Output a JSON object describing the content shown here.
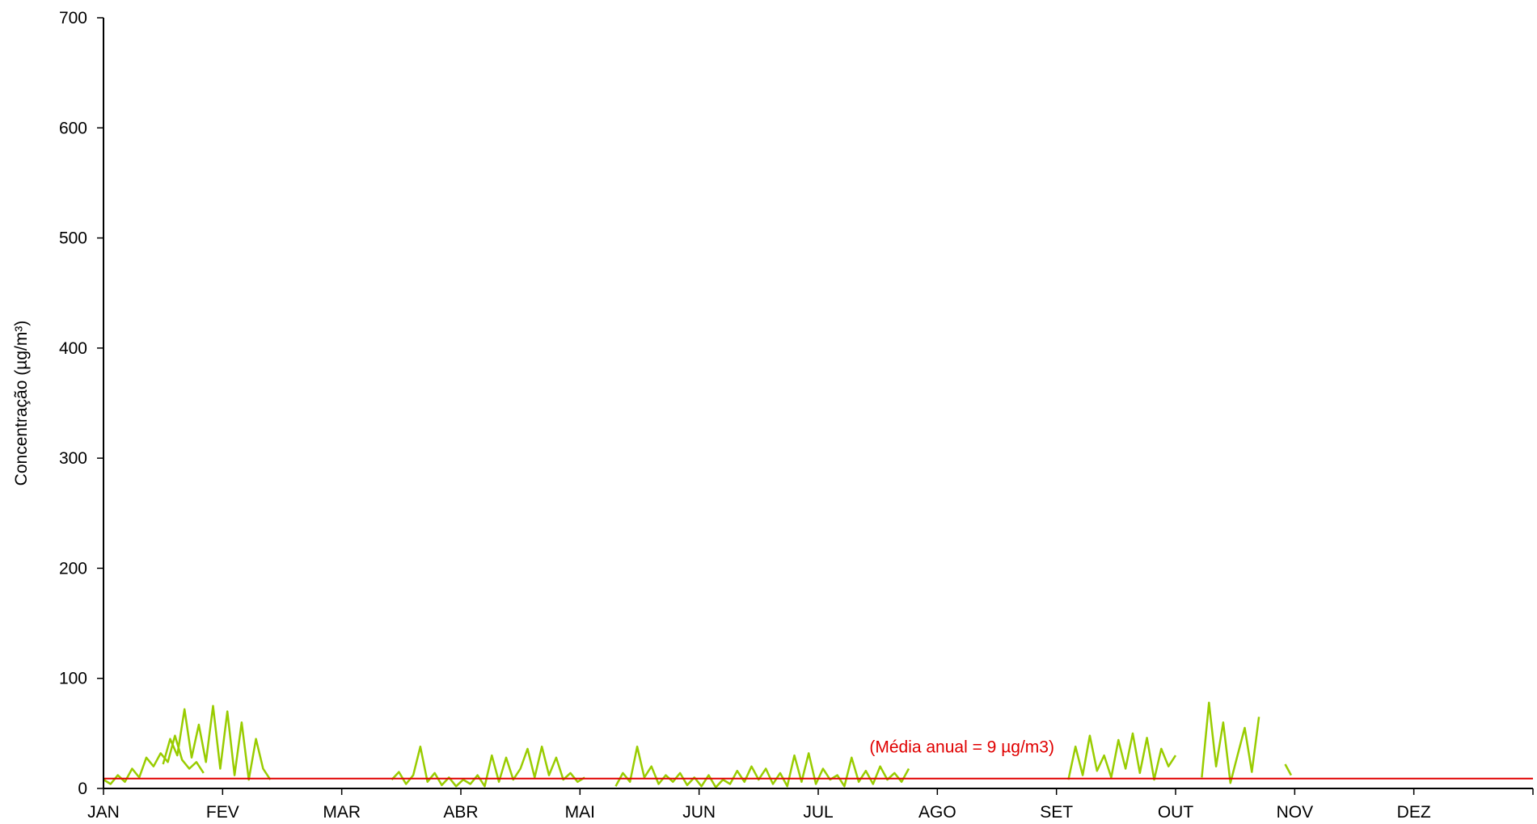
{
  "chart_data": {
    "type": "line",
    "title": "",
    "xlabel": "",
    "ylabel": "Concentração (µg/m³)",
    "ylim": [
      0,
      700
    ],
    "yticks": [
      0,
      100,
      200,
      300,
      400,
      500,
      600,
      700
    ],
    "grid": false,
    "legend": "none",
    "x_axis": {
      "categories": [
        "JAN",
        "FEV",
        "MAR",
        "ABR",
        "MAI",
        "JUN",
        "JUL",
        "AGO",
        "SET",
        "OUT",
        "NOV",
        "DEZ"
      ]
    },
    "colors": {
      "series": "#99cc00",
      "reference": "#e00000",
      "axis": "#000000"
    },
    "reference_line": {
      "value": 9,
      "label": "(Média anual = 9 µg/m3)"
    },
    "series": [
      {
        "name": "",
        "x_unit": "month (0 = JAN, 12 = end of DEZ)",
        "segments": [
          {
            "x": [
              0.0,
              0.06,
              0.12,
              0.18,
              0.24,
              0.3,
              0.36,
              0.42,
              0.48,
              0.54,
              0.6,
              0.66,
              0.72,
              0.78,
              0.84
            ],
            "y": [
              8,
              4,
              12,
              6,
              18,
              10,
              28,
              20,
              32,
              24,
              48,
              26,
              18,
              24,
              14
            ]
          },
          {
            "x": [
              0.5,
              0.56,
              0.62,
              0.68,
              0.74,
              0.8,
              0.86,
              0.92,
              0.98,
              1.04,
              1.1,
              1.16,
              1.22,
              1.28,
              1.34,
              1.4
            ],
            "y": [
              22,
              45,
              30,
              72,
              28,
              58,
              24,
              75,
              18,
              70,
              12,
              60,
              8,
              45,
              18,
              8
            ]
          },
          {
            "x": [
              2.42,
              2.48,
              2.54,
              2.6,
              2.66,
              2.72,
              2.78,
              2.84,
              2.9,
              2.96,
              3.02,
              3.08,
              3.14,
              3.2,
              3.26,
              3.32,
              3.38,
              3.44,
              3.5,
              3.56,
              3.62,
              3.68,
              3.74,
              3.8,
              3.86,
              3.92,
              3.98,
              4.04
            ],
            "y": [
              8,
              15,
              4,
              12,
              38,
              6,
              14,
              3,
              10,
              2,
              8,
              4,
              12,
              2,
              30,
              6,
              28,
              8,
              18,
              36,
              10,
              38,
              12,
              28,
              8,
              14,
              6,
              10
            ]
          },
          {
            "x": [
              4.3,
              4.36,
              4.42,
              4.48,
              4.54,
              4.6,
              4.66,
              4.72,
              4.78,
              4.84,
              4.9,
              4.96,
              5.02,
              5.08,
              5.14,
              5.2,
              5.26,
              5.32,
              5.38,
              5.44,
              5.5,
              5.56,
              5.62,
              5.68,
              5.74,
              5.8,
              5.86,
              5.92,
              5.98,
              6.04,
              6.1,
              6.16,
              6.22,
              6.28,
              6.34,
              6.4,
              6.46,
              6.52,
              6.58,
              6.64,
              6.7,
              6.76
            ],
            "y": [
              2,
              14,
              6,
              38,
              10,
              20,
              4,
              12,
              6,
              14,
              3,
              10,
              2,
              12,
              1,
              8,
              4,
              16,
              6,
              20,
              8,
              18,
              4,
              14,
              2,
              30,
              6,
              32,
              4,
              18,
              8,
              12,
              2,
              28,
              6,
              16,
              4,
              20,
              8,
              14,
              6,
              18
            ]
          },
          {
            "x": [
              8.1,
              8.16,
              8.22,
              8.28,
              8.34,
              8.4,
              8.46,
              8.52,
              8.58,
              8.64,
              8.7,
              8.76,
              8.82,
              8.88,
              8.94,
              9.0
            ],
            "y": [
              8,
              38,
              12,
              48,
              16,
              30,
              10,
              44,
              18,
              50,
              14,
              46,
              8,
              36,
              20,
              30
            ]
          },
          {
            "x": [
              9.22,
              9.28,
              9.34,
              9.4,
              9.46,
              9.52,
              9.58,
              9.64,
              9.7
            ],
            "y": [
              10,
              78,
              20,
              60,
              5,
              30,
              55,
              15,
              65
            ]
          },
          {
            "x": [
              9.92,
              9.97
            ],
            "y": [
              22,
              12
            ]
          }
        ]
      }
    ]
  }
}
